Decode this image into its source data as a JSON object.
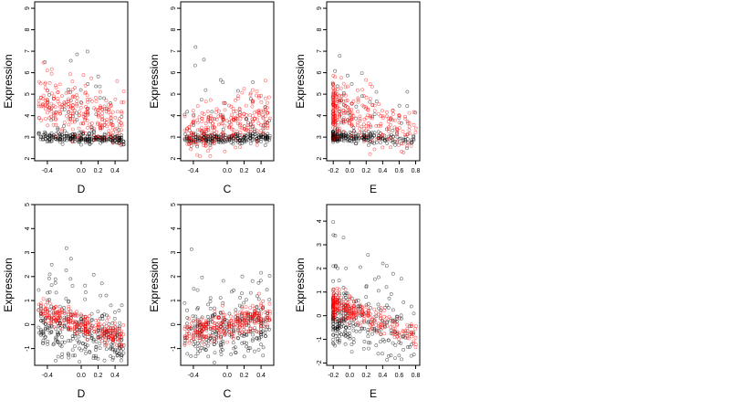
{
  "chart_data": [
    {
      "type": "scatter",
      "xlabel": "D",
      "ylabel": "Expression",
      "xlim": [
        -0.55,
        0.55
      ],
      "ylim": [
        1.9,
        9.3
      ],
      "xticks": [
        -0.4,
        0.0,
        0.2,
        0.4
      ],
      "xtick_labels": [
        "-0.4",
        "0.0",
        "0.2",
        "0.4"
      ],
      "yticks": [
        2,
        3,
        4,
        5,
        6,
        7,
        8,
        9
      ],
      "ytick_labels": [
        "2",
        "3",
        "4",
        "5",
        "6",
        "7",
        "8",
        "9"
      ],
      "series": [
        {
          "color": "#000000",
          "pattern": {
            "xmin": -0.5,
            "xmax": 0.5,
            "base": 2.95,
            "slope": -0.1,
            "spread": 0.12,
            "spreadUp": 1.6,
            "n": 300,
            "seed": 11
          }
        },
        {
          "color": "#ff0000",
          "pattern": {
            "xmin": -0.5,
            "xmax": 0.5,
            "base": 4.1,
            "slope": -1.1,
            "spread": 0.55,
            "spreadUp": 0.6,
            "n": 260,
            "seed": 12
          }
        }
      ]
    },
    {
      "type": "scatter",
      "xlabel": "C",
      "ylabel": "Expression",
      "xlim": [
        -0.55,
        0.55
      ],
      "ylim": [
        1.9,
        9.3
      ],
      "xticks": [
        -0.4,
        0.0,
        0.2,
        0.4
      ],
      "xtick_labels": [
        "-0.4",
        "0.0",
        "0.2",
        "0.4"
      ],
      "yticks": [
        2,
        3,
        4,
        5,
        6,
        7,
        8,
        9
      ],
      "ytick_labels": [
        "2",
        "3",
        "4",
        "5",
        "6",
        "7",
        "8",
        "9"
      ],
      "series": [
        {
          "color": "#000000",
          "pattern": {
            "xmin": -0.5,
            "xmax": 0.5,
            "base": 2.95,
            "slope": 0.05,
            "spread": 0.12,
            "spreadUp": 1.3,
            "n": 280,
            "seed": 21
          }
        },
        {
          "color": "#ff0000",
          "pattern": {
            "xmin": -0.5,
            "xmax": 0.5,
            "base": 3.6,
            "slope": 1.1,
            "spread": 0.45,
            "spreadUp": 0.5,
            "n": 260,
            "seed": 22
          }
        }
      ]
    },
    {
      "type": "scatter",
      "xlabel": "E",
      "ylabel": "Expression",
      "xlim": [
        -0.28,
        0.85
      ],
      "ylim": [
        1.9,
        9.3
      ],
      "xticks": [
        -0.2,
        0.0,
        0.2,
        0.4,
        0.6,
        0.8
      ],
      "xtick_labels": [
        "-0.2",
        "0.0",
        "0.2",
        "0.4",
        "0.6",
        "0.8"
      ],
      "yticks": [
        2,
        3,
        4,
        5,
        6,
        7,
        8,
        9
      ],
      "ytick_labels": [
        "2",
        "3",
        "4",
        "5",
        "6",
        "7",
        "8",
        "9"
      ],
      "series": [
        {
          "color": "#000000",
          "pattern": {
            "xmin": -0.21,
            "xmax": 0.8,
            "base": 3.0,
            "slope": -0.15,
            "spread": 0.12,
            "spreadUp": 1.5,
            "n": 280,
            "seed": 31,
            "skew": 2.2
          }
        },
        {
          "color": "#ff0000",
          "pattern": {
            "xmin": -0.21,
            "xmax": 0.8,
            "base": 4.0,
            "slope": -1.1,
            "spread": 0.55,
            "spreadUp": 0.6,
            "n": 280,
            "seed": 32,
            "skew": 2.2
          }
        }
      ]
    },
    {
      "type": "scatter",
      "xlabel": "D",
      "ylabel": "Expression",
      "xlim": [
        -0.55,
        0.55
      ],
      "ylim": [
        -1.7,
        5.0
      ],
      "xticks": [
        -0.4,
        0.0,
        0.2,
        0.4
      ],
      "xtick_labels": [
        "-0.4",
        "0.0",
        "0.2",
        "0.4"
      ],
      "yticks": [
        -1,
        0,
        1,
        2,
        3,
        4,
        5
      ],
      "ytick_labels": [
        "-1",
        "0",
        "1",
        "2",
        "3",
        "4",
        "5"
      ],
      "series": [
        {
          "color": "#000000",
          "pattern": {
            "xmin": -0.5,
            "xmax": 0.5,
            "base": -0.4,
            "slope": -0.6,
            "spread": 0.55,
            "spreadUp": 1.4,
            "n": 300,
            "seed": 41
          }
        },
        {
          "color": "#ff0000",
          "pattern": {
            "xmin": -0.5,
            "xmax": 0.5,
            "base": 0.0,
            "slope": -1.1,
            "spread": 0.25,
            "spreadUp": 0.3,
            "n": 260,
            "seed": 42
          }
        }
      ]
    },
    {
      "type": "scatter",
      "xlabel": "C",
      "ylabel": "Expression",
      "xlim": [
        -0.55,
        0.55
      ],
      "ylim": [
        -1.7,
        5.0
      ],
      "xticks": [
        -0.4,
        0.0,
        0.2,
        0.4
      ],
      "xtick_labels": [
        "-0.4",
        "0.0",
        "0.2",
        "0.4"
      ],
      "yticks": [
        -1,
        0,
        1,
        2,
        3,
        4,
        5
      ],
      "ytick_labels": [
        "-1",
        "0",
        "1",
        "2",
        "3",
        "4",
        "5"
      ],
      "series": [
        {
          "color": "#000000",
          "pattern": {
            "xmin": -0.5,
            "xmax": 0.5,
            "base": -0.3,
            "slope": 0.1,
            "spread": 0.6,
            "spreadUp": 1.2,
            "n": 280,
            "seed": 51
          }
        },
        {
          "color": "#ff0000",
          "pattern": {
            "xmin": -0.5,
            "xmax": 0.5,
            "base": -0.05,
            "slope": 0.9,
            "spread": 0.25,
            "spreadUp": 0.3,
            "n": 260,
            "seed": 52
          }
        }
      ]
    },
    {
      "type": "scatter",
      "xlabel": "E",
      "ylabel": "Expression",
      "xlim": [
        -0.28,
        0.85
      ],
      "ylim": [
        -2.1,
        4.7
      ],
      "xticks": [
        -0.2,
        0.0,
        0.2,
        0.4,
        0.6,
        0.8
      ],
      "xtick_labels": [
        "-0.2",
        "0.0",
        "0.2",
        "0.4",
        "0.6",
        "0.8"
      ],
      "yticks": [
        -2,
        -1,
        0,
        1,
        2,
        3,
        4
      ],
      "ytick_labels": [
        "-2",
        "-1",
        "0",
        "1",
        "2",
        "3",
        "4"
      ],
      "series": [
        {
          "color": "#000000",
          "pattern": {
            "xmin": -0.21,
            "xmax": 0.8,
            "base": -0.3,
            "slope": -0.9,
            "spread": 0.55,
            "spreadUp": 1.5,
            "n": 280,
            "seed": 61,
            "skew": 2.2
          }
        },
        {
          "color": "#ff0000",
          "pattern": {
            "xmin": -0.21,
            "xmax": 0.8,
            "base": 0.2,
            "slope": -1.3,
            "spread": 0.25,
            "spreadUp": 0.3,
            "n": 280,
            "seed": 62,
            "skew": 2.2
          }
        }
      ]
    }
  ]
}
